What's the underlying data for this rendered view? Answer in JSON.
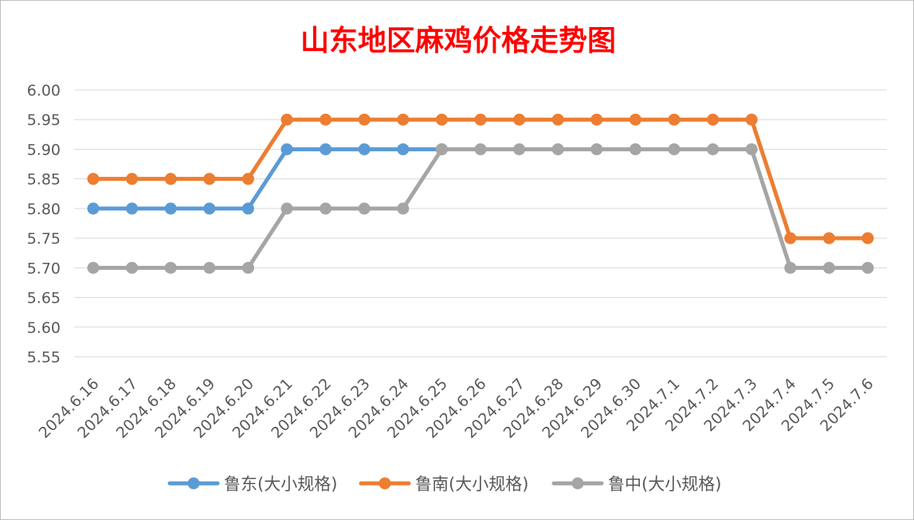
{
  "chart_data": {
    "type": "line",
    "title": "山东地区麻鸡价格走势图",
    "title_color": "#ff0000",
    "xlabel": "",
    "ylabel": "",
    "ylim": [
      5.55,
      6.0
    ],
    "y_ticks": [
      "6.00",
      "5.95",
      "5.90",
      "5.85",
      "5.80",
      "5.75",
      "5.70",
      "5.65",
      "5.60",
      "5.55"
    ],
    "grid": true,
    "legend_position": "bottom",
    "categories": [
      "2024.6.16",
      "2024.6.17",
      "2024.6.18",
      "2024.6.19",
      "2024.6.20",
      "2024.6.21",
      "2024.6.22",
      "2024.6.23",
      "2024.6.24",
      "2024.6.25",
      "2024.6.26",
      "2024.6.27",
      "2024.6.28",
      "2024.6.29",
      "2024.6.30",
      "2024.7.1",
      "2024.7.2",
      "2024.7.3",
      "2024.7.4",
      "2024.7.5",
      "2024.7.6"
    ],
    "series": [
      {
        "name": "鲁东(大小规格)",
        "color": "#5b9bd5",
        "values": [
          5.8,
          5.8,
          5.8,
          5.8,
          5.8,
          5.9,
          5.9,
          5.9,
          5.9,
          5.9,
          null,
          null,
          null,
          null,
          null,
          null,
          null,
          null,
          null,
          null,
          null
        ]
      },
      {
        "name": "鲁南(大小规格)",
        "color": "#ed7d31",
        "values": [
          5.85,
          5.85,
          5.85,
          5.85,
          5.85,
          5.95,
          5.95,
          5.95,
          5.95,
          5.95,
          5.95,
          5.95,
          5.95,
          5.95,
          5.95,
          5.95,
          5.95,
          5.95,
          5.75,
          5.75,
          5.75
        ]
      },
      {
        "name": "鲁中(大小规格)",
        "color": "#a5a5a5",
        "values": [
          5.7,
          5.7,
          5.7,
          5.7,
          5.7,
          5.8,
          5.8,
          5.8,
          5.8,
          5.9,
          5.9,
          5.9,
          5.9,
          5.9,
          5.9,
          5.9,
          5.9,
          5.9,
          5.7,
          5.7,
          5.7
        ]
      }
    ]
  }
}
